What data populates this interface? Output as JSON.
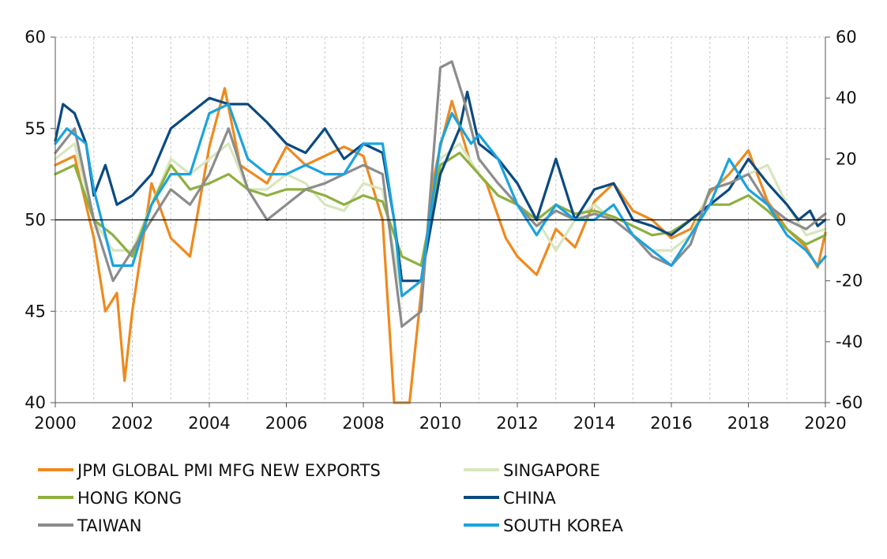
{
  "chart_data": {
    "type": "line",
    "title": "",
    "xlabel": "",
    "ylabel": "",
    "y2label": "",
    "xlim": [
      2000,
      2020
    ],
    "ylim": [
      40,
      60
    ],
    "y2lim": [
      -60,
      60
    ],
    "x_ticks": [
      "2000",
      "2002",
      "2004",
      "2006",
      "2008",
      "2010",
      "2012",
      "2014",
      "2016",
      "2018",
      "2020"
    ],
    "y_ticks": [
      "40",
      "45",
      "50",
      "55",
      "60"
    ],
    "y2_ticks": [
      "-60",
      "-40",
      "-20",
      "0",
      "20",
      "40",
      "60"
    ],
    "grid": true,
    "reference_line_y": 50,
    "legend_position": "bottom",
    "series": [
      {
        "name": "JPM GLOBAL PMI MFG NEW EXPORTS",
        "color": "#ee8a1e",
        "axis": "left",
        "points": [
          [
            2000,
            53
          ],
          [
            2000.5,
            53.5
          ],
          [
            2001,
            49
          ],
          [
            2001.3,
            45
          ],
          [
            2001.6,
            46
          ],
          [
            2001.8,
            41.2
          ],
          [
            2002,
            45
          ],
          [
            2002.5,
            52
          ],
          [
            2003,
            49
          ],
          [
            2003.5,
            48
          ],
          [
            2004,
            54
          ],
          [
            2004.4,
            57.2
          ],
          [
            2004.8,
            53
          ],
          [
            2005.5,
            52
          ],
          [
            2006,
            54
          ],
          [
            2006.5,
            53
          ],
          [
            2007,
            53.5
          ],
          [
            2007.5,
            54
          ],
          [
            2008,
            53.5
          ],
          [
            2008.5,
            50
          ],
          [
            2008.8,
            40
          ],
          [
            2009.2,
            40
          ],
          [
            2009.5,
            46
          ],
          [
            2009.8,
            52
          ],
          [
            2010,
            54
          ],
          [
            2010.3,
            56.5
          ],
          [
            2010.8,
            53
          ],
          [
            2011.2,
            52
          ],
          [
            2011.7,
            49
          ],
          [
            2012,
            48
          ],
          [
            2012.5,
            47
          ],
          [
            2013,
            49.5
          ],
          [
            2013.5,
            48.5
          ],
          [
            2014,
            51
          ],
          [
            2014.5,
            52
          ],
          [
            2015,
            50.5
          ],
          [
            2015.5,
            50
          ],
          [
            2016,
            49
          ],
          [
            2016.5,
            49.5
          ],
          [
            2017,
            51.5
          ],
          [
            2017.5,
            52.5
          ],
          [
            2018,
            53.8
          ],
          [
            2018.5,
            51
          ],
          [
            2019,
            49.5
          ],
          [
            2019.5,
            48.5
          ],
          [
            2019.8,
            47.4
          ],
          [
            2020,
            49.3
          ]
        ]
      },
      {
        "name": "SINGAPORE",
        "color": "#d7e6bd",
        "axis": "right",
        "points": [
          [
            2000,
            20
          ],
          [
            2000.5,
            25
          ],
          [
            2001,
            0
          ],
          [
            2001.5,
            -10
          ],
          [
            2002,
            -10
          ],
          [
            2002.5,
            5
          ],
          [
            2003,
            20
          ],
          [
            2003.5,
            15
          ],
          [
            2004,
            20
          ],
          [
            2004.5,
            25
          ],
          [
            2005,
            10
          ],
          [
            2005.5,
            10
          ],
          [
            2006,
            15
          ],
          [
            2006.5,
            12
          ],
          [
            2007,
            5
          ],
          [
            2007.5,
            3
          ],
          [
            2008,
            12
          ],
          [
            2008.5,
            10
          ],
          [
            2009,
            -25
          ],
          [
            2009.5,
            -20
          ],
          [
            2010,
            20
          ],
          [
            2010.5,
            25
          ],
          [
            2011,
            15
          ],
          [
            2011.5,
            8
          ],
          [
            2012,
            5
          ],
          [
            2012.5,
            0
          ],
          [
            2013,
            -10
          ],
          [
            2013.5,
            0
          ],
          [
            2014,
            5
          ],
          [
            2014.5,
            0
          ],
          [
            2015,
            -5
          ],
          [
            2015.5,
            -10
          ],
          [
            2016,
            -10
          ],
          [
            2016.5,
            -5
          ],
          [
            2017,
            10
          ],
          [
            2017.5,
            12
          ],
          [
            2018,
            15
          ],
          [
            2018.5,
            18
          ],
          [
            2019,
            5
          ],
          [
            2019.5,
            -5
          ],
          [
            2020,
            -3
          ]
        ]
      },
      {
        "name": "HONG KONG",
        "color": "#8db03e",
        "axis": "right",
        "points": [
          [
            2000,
            15
          ],
          [
            2000.5,
            18
          ],
          [
            2001,
            0
          ],
          [
            2001.5,
            -5
          ],
          [
            2002,
            -12
          ],
          [
            2002.5,
            5
          ],
          [
            2003,
            18
          ],
          [
            2003.5,
            10
          ],
          [
            2004,
            12
          ],
          [
            2004.5,
            15
          ],
          [
            2005,
            10
          ],
          [
            2005.5,
            8
          ],
          [
            2006,
            10
          ],
          [
            2006.5,
            10
          ],
          [
            2007,
            8
          ],
          [
            2007.5,
            5
          ],
          [
            2008,
            8
          ],
          [
            2008.5,
            6
          ],
          [
            2009,
            -12
          ],
          [
            2009.5,
            -15
          ],
          [
            2010,
            18
          ],
          [
            2010.5,
            22
          ],
          [
            2011,
            15
          ],
          [
            2011.5,
            8
          ],
          [
            2012,
            5
          ],
          [
            2012.5,
            0
          ],
          [
            2013,
            5
          ],
          [
            2013.5,
            2
          ],
          [
            2014,
            3
          ],
          [
            2014.5,
            1
          ],
          [
            2015,
            -2
          ],
          [
            2015.5,
            -5
          ],
          [
            2016,
            -4
          ],
          [
            2016.5,
            0
          ],
          [
            2017,
            5
          ],
          [
            2017.5,
            5
          ],
          [
            2018,
            8
          ],
          [
            2018.5,
            3
          ],
          [
            2019,
            -3
          ],
          [
            2019.5,
            -8
          ],
          [
            2020,
            -5
          ]
        ]
      },
      {
        "name": "CHINA",
        "color": "#0b4a82",
        "axis": "right",
        "points": [
          [
            2000,
            26
          ],
          [
            2000.2,
            38
          ],
          [
            2000.5,
            35
          ],
          [
            2000.8,
            25
          ],
          [
            2001,
            8
          ],
          [
            2001.3,
            18
          ],
          [
            2001.6,
            5
          ],
          [
            2002,
            8
          ],
          [
            2002.5,
            15
          ],
          [
            2003,
            30
          ],
          [
            2003.5,
            35
          ],
          [
            2004,
            40
          ],
          [
            2004.5,
            38
          ],
          [
            2005,
            38
          ],
          [
            2005.5,
            32
          ],
          [
            2006,
            25
          ],
          [
            2006.5,
            22
          ],
          [
            2007,
            30
          ],
          [
            2007.5,
            20
          ],
          [
            2008,
            25
          ],
          [
            2008.5,
            22
          ],
          [
            2008.8,
            0
          ],
          [
            2009,
            -20
          ],
          [
            2009.5,
            -20
          ],
          [
            2010,
            15
          ],
          [
            2010.5,
            30
          ],
          [
            2010.7,
            42
          ],
          [
            2011,
            25
          ],
          [
            2011.5,
            20
          ],
          [
            2012,
            12
          ],
          [
            2012.5,
            0
          ],
          [
            2013,
            20
          ],
          [
            2013.5,
            0
          ],
          [
            2014,
            10
          ],
          [
            2014.5,
            12
          ],
          [
            2015,
            0
          ],
          [
            2015.5,
            -2
          ],
          [
            2016,
            -5
          ],
          [
            2016.5,
            0
          ],
          [
            2017,
            5
          ],
          [
            2017.5,
            10
          ],
          [
            2018,
            20
          ],
          [
            2018.5,
            12
          ],
          [
            2019,
            5
          ],
          [
            2019.3,
            0
          ],
          [
            2019.6,
            3
          ],
          [
            2019.8,
            -2
          ],
          [
            2020,
            0
          ]
        ]
      },
      {
        "name": "TAIWAN",
        "color": "#8c8c8c",
        "axis": "right",
        "points": [
          [
            2000,
            22
          ],
          [
            2000.5,
            30
          ],
          [
            2001,
            0
          ],
          [
            2001.5,
            -20
          ],
          [
            2002,
            -10
          ],
          [
            2002.5,
            0
          ],
          [
            2003,
            10
          ],
          [
            2003.5,
            5
          ],
          [
            2004,
            15
          ],
          [
            2004.5,
            30
          ],
          [
            2005,
            10
          ],
          [
            2005.5,
            0
          ],
          [
            2006,
            5
          ],
          [
            2006.5,
            10
          ],
          [
            2007,
            12
          ],
          [
            2007.5,
            15
          ],
          [
            2008,
            18
          ],
          [
            2008.5,
            15
          ],
          [
            2009,
            -35
          ],
          [
            2009.5,
            -30
          ],
          [
            2010,
            50
          ],
          [
            2010.3,
            52
          ],
          [
            2010.6,
            40
          ],
          [
            2011,
            20
          ],
          [
            2011.5,
            12
          ],
          [
            2012,
            5
          ],
          [
            2012.5,
            -2
          ],
          [
            2013,
            3
          ],
          [
            2013.5,
            0
          ],
          [
            2014,
            2
          ],
          [
            2014.5,
            0
          ],
          [
            2015,
            -5
          ],
          [
            2015.5,
            -12
          ],
          [
            2016,
            -15
          ],
          [
            2016.5,
            -8
          ],
          [
            2017,
            10
          ],
          [
            2017.5,
            12
          ],
          [
            2018,
            15
          ],
          [
            2018.5,
            5
          ],
          [
            2019,
            0
          ],
          [
            2019.5,
            -3
          ],
          [
            2020,
            2
          ]
        ]
      },
      {
        "name": "SOUTH KOREA",
        "color": "#1aa3e0",
        "axis": "right",
        "points": [
          [
            2000,
            25
          ],
          [
            2000.3,
            30
          ],
          [
            2000.8,
            25
          ],
          [
            2001,
            10
          ],
          [
            2001.5,
            -15
          ],
          [
            2002,
            -15
          ],
          [
            2002.5,
            5
          ],
          [
            2003,
            15
          ],
          [
            2003.5,
            15
          ],
          [
            2004,
            35
          ],
          [
            2004.5,
            38
          ],
          [
            2005,
            20
          ],
          [
            2005.5,
            15
          ],
          [
            2006,
            15
          ],
          [
            2006.5,
            18
          ],
          [
            2007,
            15
          ],
          [
            2007.5,
            15
          ],
          [
            2008,
            25
          ],
          [
            2008.5,
            25
          ],
          [
            2008.8,
            0
          ],
          [
            2009,
            -25
          ],
          [
            2009.5,
            -20
          ],
          [
            2010,
            25
          ],
          [
            2010.3,
            35
          ],
          [
            2010.8,
            25
          ],
          [
            2011,
            28
          ],
          [
            2011.5,
            20
          ],
          [
            2012,
            5
          ],
          [
            2012.5,
            -5
          ],
          [
            2013,
            5
          ],
          [
            2013.5,
            0
          ],
          [
            2014,
            0
          ],
          [
            2014.5,
            5
          ],
          [
            2015,
            -5
          ],
          [
            2015.5,
            -10
          ],
          [
            2016,
            -15
          ],
          [
            2016.5,
            -5
          ],
          [
            2017,
            5
          ],
          [
            2017.5,
            20
          ],
          [
            2018,
            10
          ],
          [
            2018.5,
            5
          ],
          [
            2019,
            -5
          ],
          [
            2019.5,
            -10
          ],
          [
            2019.8,
            -15
          ],
          [
            2020,
            -12
          ]
        ]
      }
    ]
  }
}
